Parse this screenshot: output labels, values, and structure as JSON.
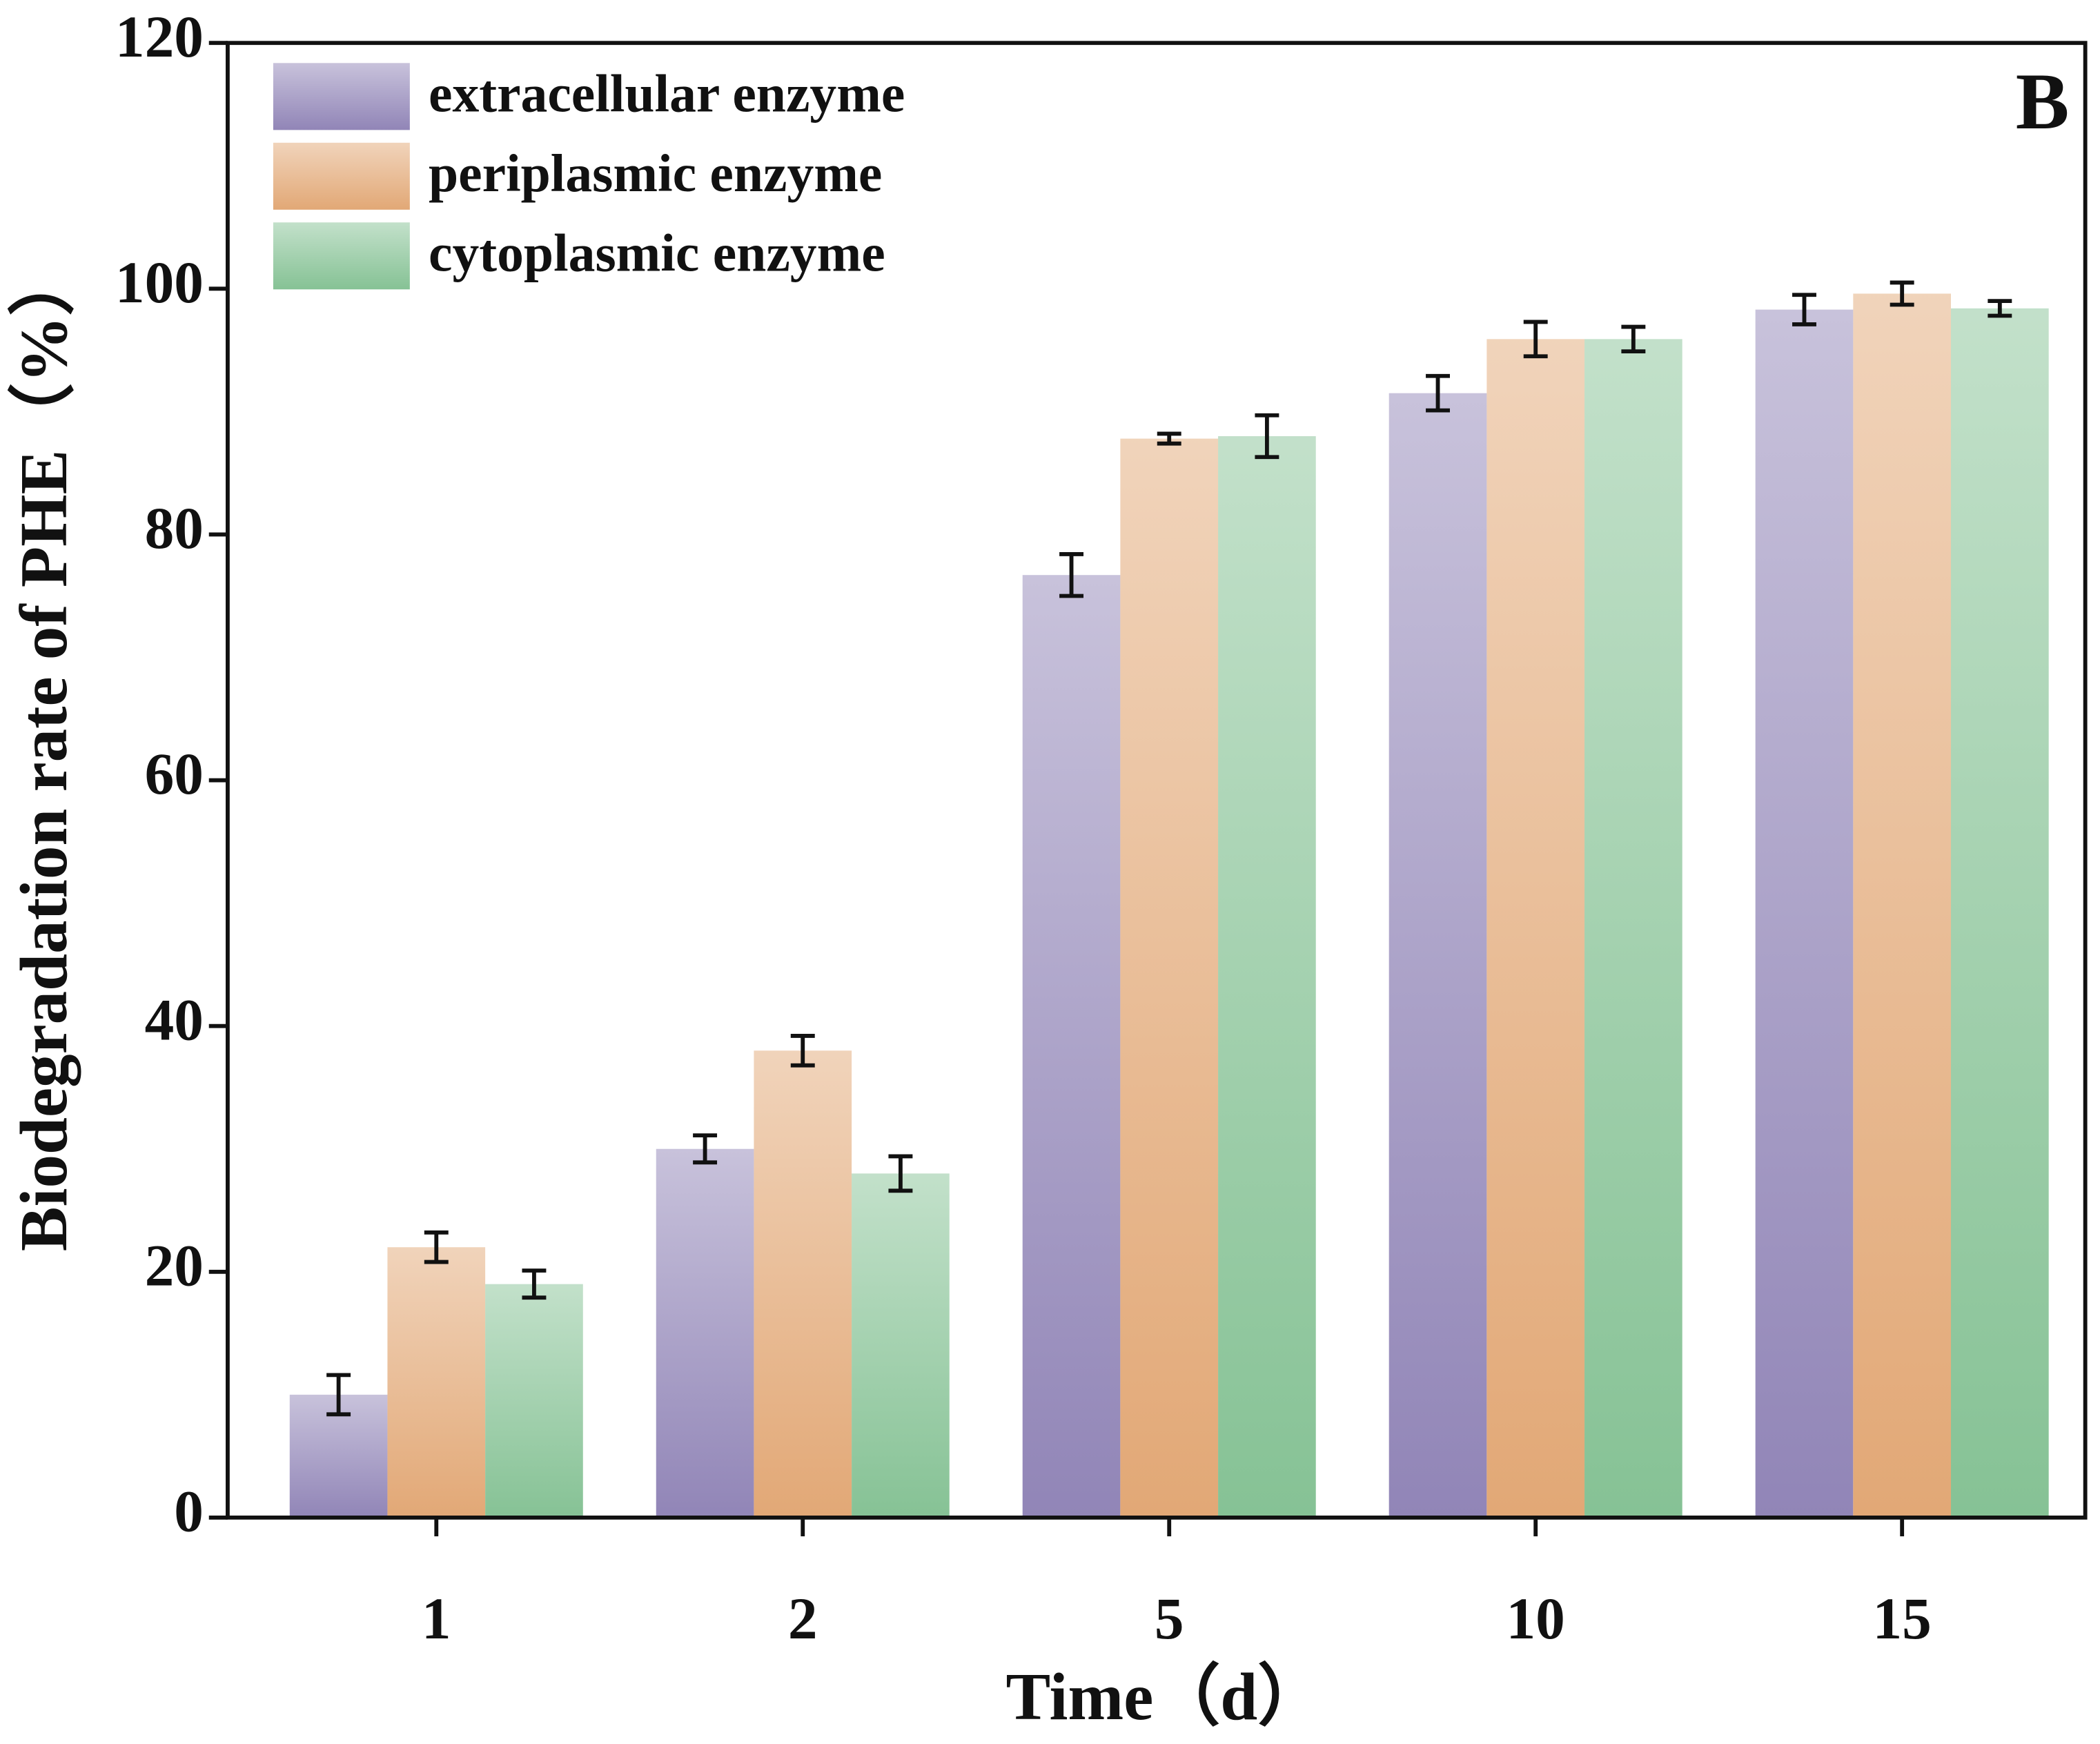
{
  "chart_data": {
    "type": "bar",
    "annotation": "B",
    "x_label": "Time（d）",
    "y_label": "Biodegradation rate of PHE（%）",
    "categories": [
      "1",
      "2",
      "5",
      "10",
      "15"
    ],
    "series": [
      {
        "name": "extracellular enzyme",
        "color": "#9185b7",
        "values": [
          10,
          30,
          76.7,
          91.5,
          98.3
        ],
        "errors": [
          1.6,
          1.1,
          1.7,
          1.4,
          1.2
        ]
      },
      {
        "name": "periplasmic enzyme",
        "color": "#e2a876",
        "values": [
          22,
          38,
          87.8,
          95.9,
          99.6
        ],
        "errors": [
          1.2,
          1.2,
          0.4,
          1.4,
          0.9
        ]
      },
      {
        "name": "cytoplasmic enzyme",
        "color": "#86c295",
        "values": [
          19,
          28,
          88,
          95.9,
          98.4
        ],
        "errors": [
          1.1,
          1.4,
          1.7,
          1.0,
          0.6
        ]
      }
    ],
    "ylim": [
      0,
      120
    ],
    "yticks": [
      0,
      20,
      40,
      60,
      80,
      100,
      120
    ],
    "legend": "top-left",
    "grid": false
  }
}
